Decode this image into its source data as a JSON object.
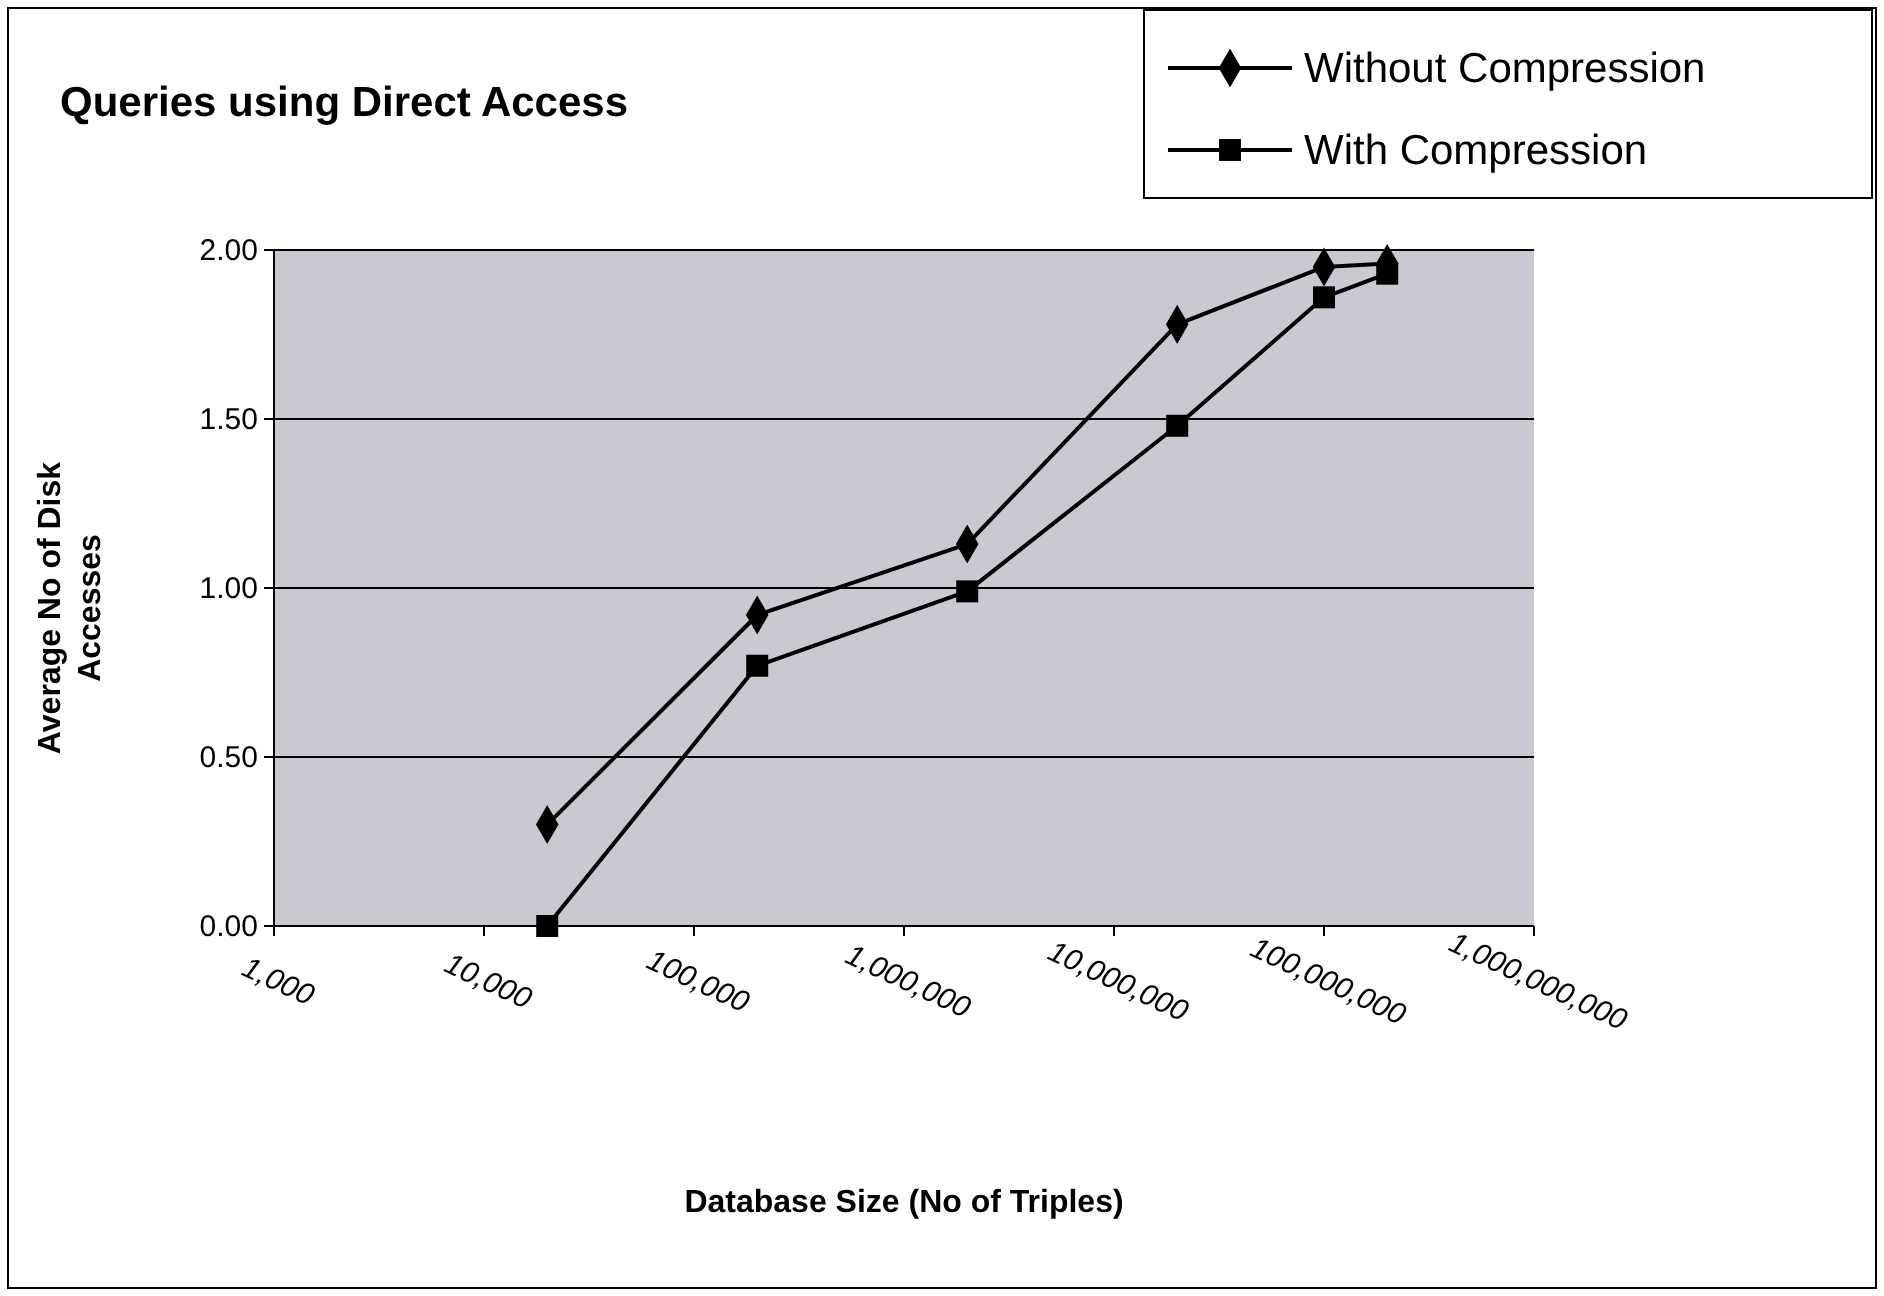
{
  "chart_data": {
    "type": "line",
    "title": "Queries using Direct Access",
    "xlabel": "Database Size (No of Triples)",
    "ylabel": "Average No of Disk Accesses",
    "log": "x",
    "xlim": [
      1000,
      1000000000
    ],
    "xticks": [
      {
        "value": 1000,
        "label": "1,000"
      },
      {
        "value": 10000,
        "label": "10,000"
      },
      {
        "value": 100000,
        "label": "100,000"
      },
      {
        "value": 1000000,
        "label": "1,000,000"
      },
      {
        "value": 10000000,
        "label": "10,000,000"
      },
      {
        "value": 100000000,
        "label": "100,000,000"
      },
      {
        "value": 1000000000,
        "label": "1,000,000,000"
      }
    ],
    "ylim": [
      0,
      2
    ],
    "yticks": [
      {
        "value": 0,
        "label": "0.00"
      },
      {
        "value": 0.5,
        "label": "0.50"
      },
      {
        "value": 1,
        "label": "1.00"
      },
      {
        "value": 1.5,
        "label": "1.50"
      },
      {
        "value": 2,
        "label": "2.00"
      }
    ],
    "grid": "y",
    "legend": "top right",
    "line_style": "solid",
    "x": [
      20000,
      200000,
      2000000,
      20000000,
      100000000,
      200000000
    ],
    "series": [
      {
        "name": "Without Compression",
        "color": "#000000",
        "marker": "diamond",
        "values": [
          0.3,
          0.92,
          1.13,
          1.78,
          1.95,
          1.96
        ]
      },
      {
        "name": "With Compression",
        "color": "#000000",
        "marker": "square",
        "values": [
          0.0,
          0.77,
          0.99,
          1.48,
          1.86,
          1.93
        ]
      }
    ]
  }
}
